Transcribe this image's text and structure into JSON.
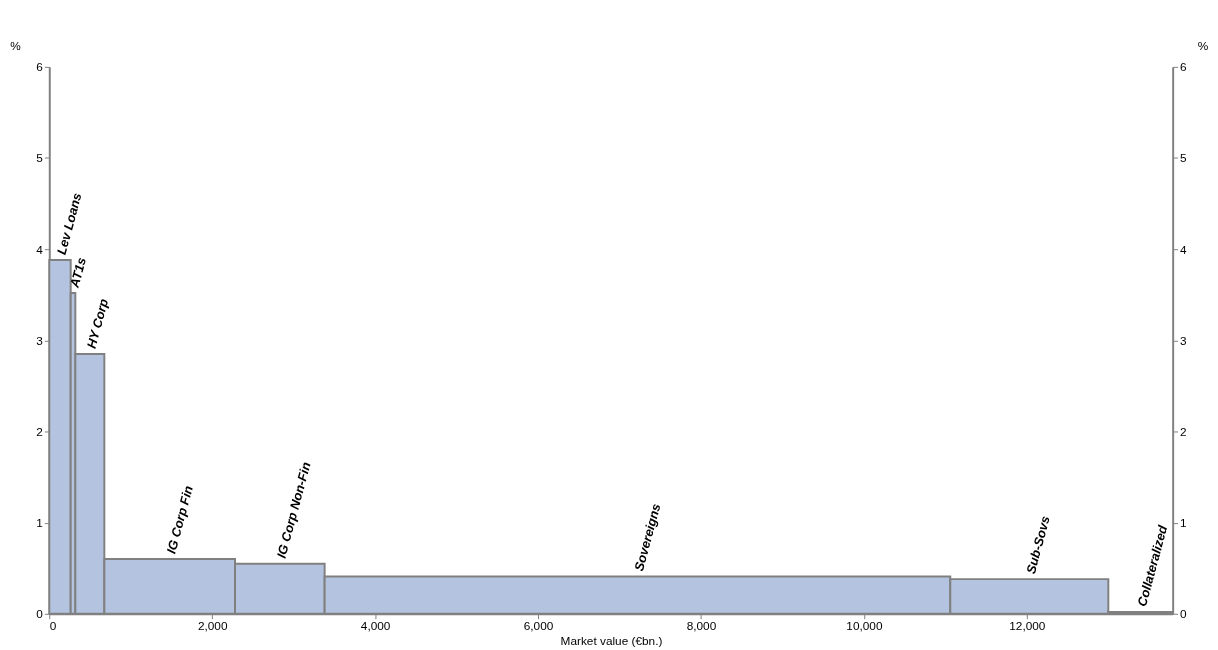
{
  "chart_data": {
    "type": "histogram",
    "bins": [
      0,
      263,
      320,
      676,
      2280,
      3380,
      11060,
      13000,
      13790
    ],
    "values": [
      3.88,
      3.52,
      2.85,
      0.6,
      0.55,
      0.41,
      0.38,
      0.02
    ],
    "color": "#b4c3df",
    "xlabel": "Market value (€bn.)",
    "ylabel": "%",
    "y2label": "%",
    "xlim": [
      0,
      13790
    ],
    "xticks": [
      0,
      {
        "value": 2000,
        "label": "2,000"
      },
      {
        "value": 4000,
        "label": "4,000"
      },
      {
        "value": 6000,
        "label": "6,000"
      },
      {
        "value": 8000,
        "label": "8,000"
      },
      {
        "value": 10000,
        "label": "10,000"
      },
      {
        "value": 12000,
        "label": "12,000"
      }
    ],
    "ylim": [
      0,
      6
    ],
    "yticks": [
      0,
      1,
      2,
      3,
      4,
      5,
      6
    ],
    "y2lim": [
      0,
      6
    ],
    "y2ticks": [
      0,
      1,
      2,
      3,
      4,
      5,
      6
    ],
    "grid": false,
    "annotations": [
      {
        "text": "Lev Loans",
        "x": 131,
        "y": 3.88
      },
      {
        "text": "AT1s",
        "x": 291,
        "y": 3.52
      },
      {
        "text": "HY Corp",
        "x": 498,
        "y": 2.85
      },
      {
        "text": "IG Corp Fin",
        "x": 1478,
        "y": 0.6
      },
      {
        "text": "IG Corp Non-Fin",
        "x": 2830,
        "y": 0.55
      },
      {
        "text": "Sovereigns",
        "x": 7220,
        "y": 0.41
      },
      {
        "text": "Sub-Sovs",
        "x": 12030,
        "y": 0.38
      },
      {
        "text": "Collateralized",
        "x": 13395,
        "y": 0.02
      }
    ]
  }
}
